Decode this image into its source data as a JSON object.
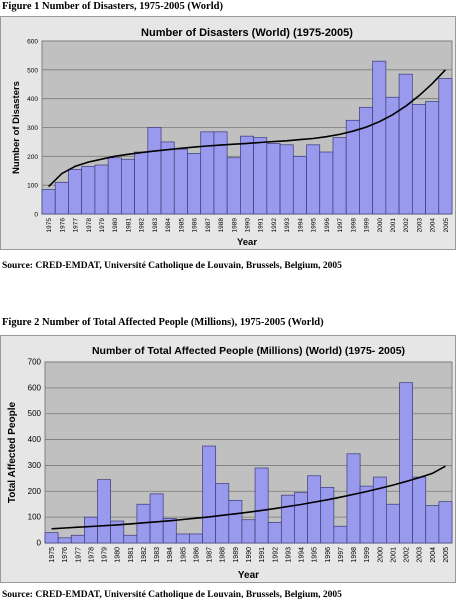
{
  "figures": [
    {
      "caption": "Figure 1 Number of Disasters, 1975-2005 (World)",
      "source": "Source: CRED-EMDAT, Université Catholique de Louvain, Brussels, Belgium, 2005"
    },
    {
      "caption": "Figure 2 Number of Total Affected People (Millions), 1975-2005 (World)",
      "source": "Source: CRED-EMDAT, Université Catholique de Louvain, Brussels, Belgium, 2005"
    }
  ],
  "chart_data": [
    {
      "type": "bar",
      "title": "Number of Disasters (World) (1975-2005)",
      "xlabel": "Year",
      "ylabel": "Number of Disasters",
      "ylim": [
        0,
        600
      ],
      "yticks": [
        0,
        100,
        200,
        300,
        400,
        500,
        600
      ],
      "grid": true,
      "categories": [
        "1975",
        "1976",
        "1977",
        "1978",
        "1979",
        "1980",
        "1981",
        "1982",
        "1983",
        "1984",
        "1985",
        "1986",
        "1987",
        "1988",
        "1989",
        "1990",
        "1991",
        "1992",
        "1993",
        "1994",
        "1995",
        "1996",
        "1997",
        "1998",
        "1999",
        "2000",
        "2001",
        "2002",
        "2003",
        "2004",
        "2005"
      ],
      "values": [
        85,
        110,
        155,
        165,
        170,
        195,
        190,
        215,
        300,
        250,
        225,
        210,
        285,
        285,
        195,
        270,
        265,
        245,
        240,
        200,
        240,
        215,
        265,
        325,
        370,
        530,
        405,
        485,
        380,
        390,
        470
      ],
      "trendline": true,
      "trend_values": [
        95,
        140,
        165,
        180,
        190,
        200,
        207,
        213,
        218,
        223,
        228,
        232,
        236,
        239,
        242,
        245,
        248,
        251,
        254,
        258,
        262,
        268,
        276,
        287,
        301,
        320,
        344,
        374,
        410,
        452,
        500
      ],
      "bar_color": "#9999ee",
      "trend_color": "#000000"
    },
    {
      "type": "bar",
      "title": "Number of Total Affected People (Millions) (World) (1975- 2005)",
      "xlabel": "Year",
      "ylabel": "Total Affected People",
      "ylim": [
        0,
        700
      ],
      "yticks": [
        0,
        100,
        200,
        300,
        400,
        500,
        600,
        700
      ],
      "grid": true,
      "categories": [
        "1975",
        "1976",
        "1977",
        "1978",
        "1979",
        "1980",
        "1981",
        "1982",
        "1983",
        "1984",
        "1985",
        "1986",
        "1987",
        "1988",
        "1989",
        "1990",
        "1991",
        "1992",
        "1993",
        "1994",
        "1995",
        "1996",
        "1997",
        "1998",
        "1999",
        "2000",
        "2001",
        "2002",
        "2003",
        "2004",
        "2005"
      ],
      "values": [
        40,
        20,
        30,
        100,
        245,
        85,
        30,
        150,
        190,
        95,
        35,
        35,
        375,
        230,
        165,
        90,
        290,
        80,
        185,
        195,
        260,
        215,
        65,
        345,
        220,
        255,
        150,
        620,
        255,
        145,
        160
      ],
      "trendline": true,
      "trend_values": [
        55,
        58,
        61,
        64,
        67,
        70,
        74,
        78,
        82,
        86,
        91,
        96,
        101,
        107,
        113,
        119,
        126,
        133,
        141,
        149,
        158,
        167,
        177,
        188,
        199,
        211,
        224,
        238,
        253,
        269,
        297
      ],
      "bar_color": "#9999ee",
      "trend_color": "#000000"
    }
  ]
}
